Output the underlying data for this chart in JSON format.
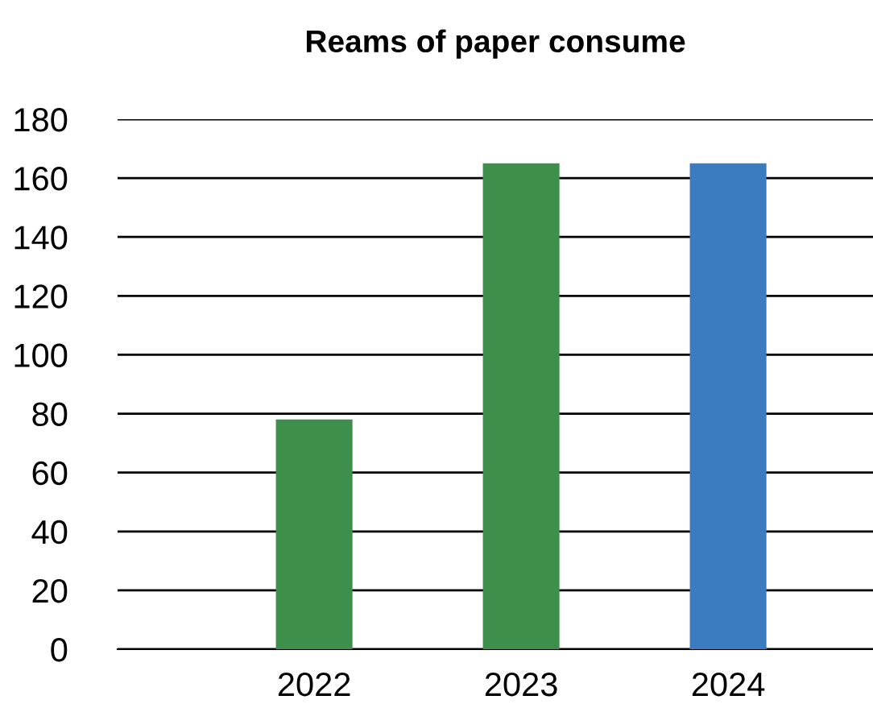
{
  "chart_data": {
    "type": "bar",
    "title": "Reams of paper consume",
    "categories": [
      "2022",
      "2023",
      "2024"
    ],
    "values": [
      78,
      165,
      165
    ],
    "colors": [
      "#3f8f4c",
      "#3f8f4c",
      "#3b7cc0"
    ],
    "ylim": [
      0,
      180
    ],
    "yticks": [
      0,
      20,
      40,
      60,
      80,
      100,
      120,
      140,
      160,
      180
    ],
    "grid": "y"
  }
}
